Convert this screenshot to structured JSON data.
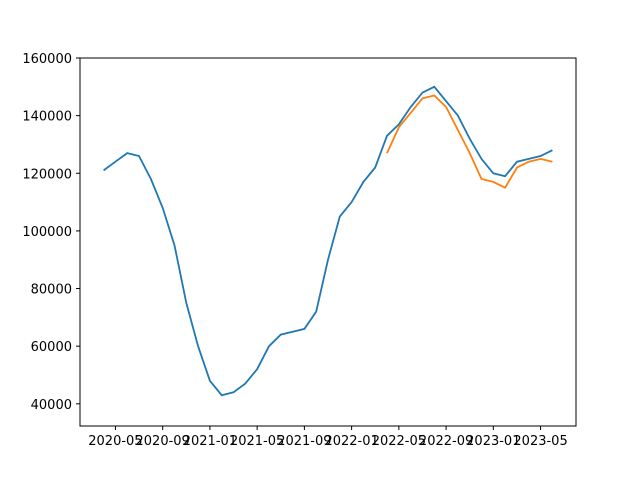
{
  "chart_data": {
    "type": "line",
    "x": [
      "2020-04",
      "2020-05",
      "2020-06",
      "2020-07",
      "2020-08",
      "2020-09",
      "2020-10",
      "2020-11",
      "2020-12",
      "2021-01",
      "2021-02",
      "2021-03",
      "2021-04",
      "2021-05",
      "2021-06",
      "2021-07",
      "2021-08",
      "2021-09",
      "2021-10",
      "2021-11",
      "2021-12",
      "2022-01",
      "2022-02",
      "2022-03",
      "2022-04",
      "2022-05",
      "2022-06",
      "2022-07",
      "2022-08",
      "2022-09",
      "2022-10",
      "2022-11",
      "2022-12",
      "2023-01",
      "2023-02",
      "2023-03",
      "2023-04",
      "2023-05",
      "2023-06"
    ],
    "series": [
      {
        "color": "#1f77b4",
        "values": [
          121000,
          124000,
          127000,
          126000,
          118000,
          108000,
          95000,
          75000,
          60000,
          48000,
          43000,
          44000,
          47000,
          52000,
          60000,
          64000,
          65000,
          66000,
          72000,
          90000,
          105000,
          110000,
          117000,
          122000,
          133000,
          137000,
          143000,
          148000,
          150000,
          145000,
          140000,
          132000,
          125000,
          120000,
          119000,
          124000,
          125000,
          126000,
          128000
        ]
      },
      {
        "color": "#ff7f0e",
        "values": [
          null,
          null,
          null,
          null,
          null,
          null,
          null,
          null,
          null,
          null,
          null,
          null,
          null,
          null,
          null,
          null,
          null,
          null,
          null,
          null,
          null,
          null,
          null,
          null,
          127000,
          136000,
          141000,
          146000,
          147000,
          143000,
          135000,
          127000,
          118000,
          117000,
          115000,
          122000,
          124000,
          125000,
          124000
        ]
      }
    ],
    "xlim": [
      "2020-02",
      "2023-08"
    ],
    "xticks": [
      "2020-05",
      "2020-09",
      "2021-01",
      "2021-05",
      "2021-09",
      "2022-01",
      "2022-05",
      "2022-09",
      "2023-01",
      "2023-05"
    ],
    "ylim": [
      32300,
      160000
    ],
    "yticks": [
      40000,
      60000,
      80000,
      100000,
      120000,
      140000,
      160000
    ]
  }
}
